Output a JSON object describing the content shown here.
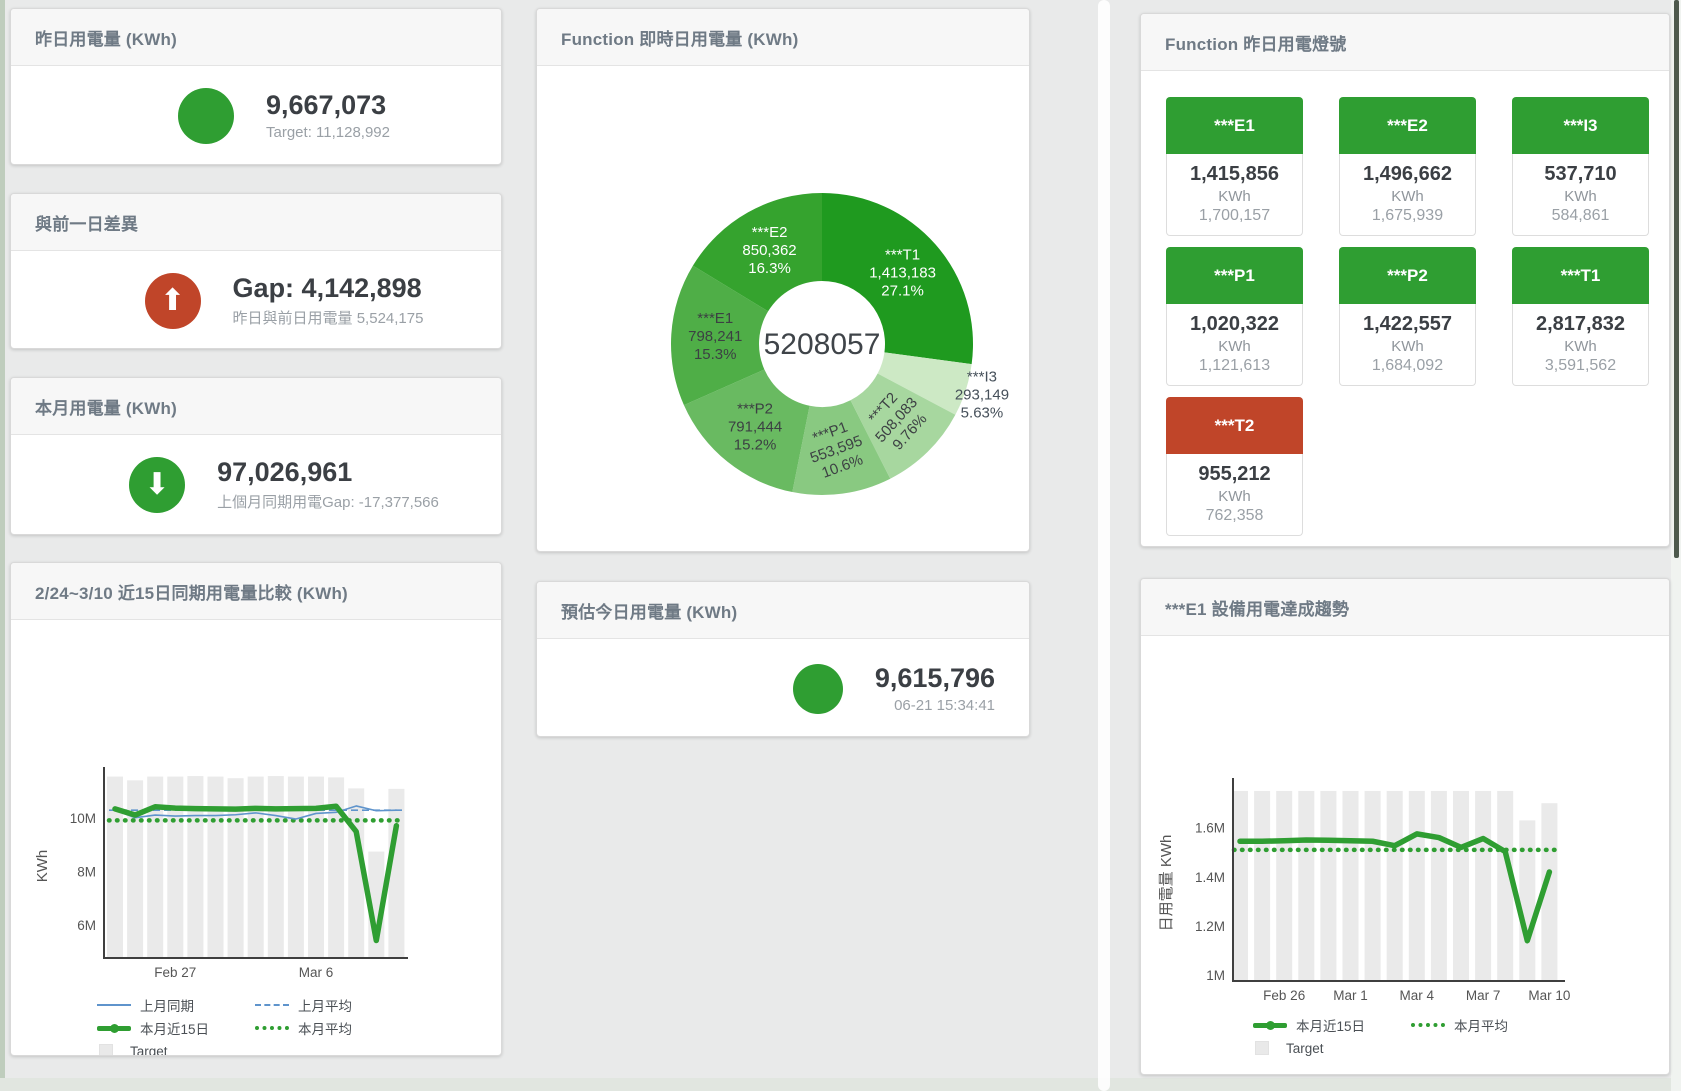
{
  "colors": {
    "green": "#2f9e32",
    "red": "#c04529",
    "blue": "#5f94cc",
    "target_bar": "#eaeaea",
    "axis": "#3f3f3f",
    "tick_text": "#555555"
  },
  "panels": {
    "yesterday": {
      "title": "昨日用電量 (KWh)",
      "value": "9,667,073",
      "sub": "Target: 11,128,992",
      "status_color": "#2f9e32"
    },
    "gap": {
      "title": "與前一日差異",
      "value": "Gap: 4,142,898",
      "sub": "昨日與前日用電量 5,524,175",
      "status_color": "#c04529",
      "arrow": "up"
    },
    "month": {
      "title": "本月用電量 (KWh)",
      "value": "97,026,961",
      "sub": "上個月同期用電Gap: -17,377,566",
      "status_color": "#2f9e32",
      "arrow": "down"
    },
    "estimate": {
      "title": "預估今日用電量 (KWh)",
      "value": "9,615,796",
      "sub": "06-21 15:34:41",
      "status_color": "#2f9e32"
    },
    "lights": {
      "title": "Function 昨日用電燈號",
      "cards": [
        {
          "label": "***E1",
          "value": "1,415,856",
          "unit": "KWh",
          "target": "1,700,157",
          "status": "green"
        },
        {
          "label": "***E2",
          "value": "1,496,662",
          "unit": "KWh",
          "target": "1,675,939",
          "status": "green"
        },
        {
          "label": "***I3",
          "value": "537,710",
          "unit": "KWh",
          "target": "584,861",
          "status": "green"
        },
        {
          "label": "***P1",
          "value": "1,020,322",
          "unit": "KWh",
          "target": "1,121,613",
          "status": "green"
        },
        {
          "label": "***P2",
          "value": "1,422,557",
          "unit": "KWh",
          "target": "1,684,092",
          "status": "green"
        },
        {
          "label": "***T1",
          "value": "2,817,832",
          "unit": "KWh",
          "target": "3,591,562",
          "status": "green"
        },
        {
          "label": "***T2",
          "value": "955,212",
          "unit": "KWh",
          "target": "762,358",
          "status": "red"
        }
      ]
    }
  },
  "chart_data": [
    {
      "id": "realtime_donut",
      "type": "pie",
      "title": "Function 即時日用電量 (KWh)",
      "center_total": "5208057",
      "slices": [
        {
          "label": "***T1",
          "value": 1413183,
          "value_str": "1,413,183",
          "pct": 27.1,
          "pct_str": "27.1%",
          "color": "#1f9a1f",
          "text": "#ffffff",
          "rot": 0,
          "outside": false
        },
        {
          "label": "***I3",
          "value": 293149,
          "value_str": "293,149",
          "pct": 5.63,
          "pct_str": "5.63%",
          "color": "#cde9c5",
          "text": "#46505a",
          "rot": 0,
          "outside": true
        },
        {
          "label": "***T2",
          "value": 508083,
          "value_str": "508,083",
          "pct": 9.76,
          "pct_str": "9.76%",
          "color": "#a7d79f",
          "text": "#3c4043",
          "rot": -48,
          "outside": false
        },
        {
          "label": "***P1",
          "value": 553595,
          "value_str": "553,595",
          "pct": 10.6,
          "pct_str": "10.6%",
          "color": "#89c981",
          "text": "#3c4043",
          "rot": -20,
          "outside": false
        },
        {
          "label": "***P2",
          "value": 791444,
          "value_str": "791,444",
          "pct": 15.2,
          "pct_str": "15.2%",
          "color": "#69ba61",
          "text": "#3c4043",
          "rot": 0,
          "outside": false
        },
        {
          "label": "***E1",
          "value": 798241,
          "value_str": "798,241",
          "pct": 15.3,
          "pct_str": "15.3%",
          "color": "#4fae47",
          "text": "#3c4043",
          "rot": 0,
          "outside": false
        },
        {
          "label": "***E2",
          "value": 850362,
          "value_str": "850,362",
          "pct": 16.3,
          "pct_str": "16.3%",
          "color": "#35a32e",
          "text": "#ffffff",
          "rot": 0,
          "outside": false
        }
      ]
    },
    {
      "id": "compare_15d",
      "type": "line",
      "title": "2/24~3/10 近15日同期用電量比較 (KWh)",
      "ylabel": "KWh",
      "values_unit": "millions of KWh",
      "n_points": 15,
      "ylim": [
        4.8,
        11.62
      ],
      "yticks": [
        {
          "v": 6,
          "label": "6M"
        },
        {
          "v": 8,
          "label": "8M"
        },
        {
          "v": 10,
          "label": "10M"
        }
      ],
      "xticks": [
        {
          "i": 3,
          "label": "Feb 27"
        },
        {
          "i": 10,
          "label": "Mar 6"
        }
      ],
      "target_bars": [
        11.56,
        11.42,
        11.56,
        11.56,
        11.58,
        11.56,
        11.5,
        11.56,
        11.58,
        11.56,
        11.56,
        11.53,
        11.12,
        8.75,
        11.1
      ],
      "series": [
        {
          "name": "上月同期",
          "kind": "line",
          "color": "#5f94cc",
          "width": 1.6,
          "values": [
            10.3,
            10.02,
            10.12,
            10.08,
            10.1,
            10.1,
            10.13,
            10.2,
            10.1,
            9.97,
            10.18,
            10.22,
            10.46,
            10.28,
            10.3
          ]
        },
        {
          "name": "上月平均",
          "kind": "dashed",
          "color": "#5f94cc",
          "width": 1.6,
          "value": 10.3
        },
        {
          "name": "本月近15日",
          "kind": "line",
          "color": "#2f9e32",
          "width": 5.5,
          "values": [
            10.35,
            10.12,
            10.43,
            10.38,
            10.36,
            10.35,
            10.34,
            10.37,
            10.35,
            10.36,
            10.37,
            10.45,
            9.5,
            5.42,
            9.72
          ]
        },
        {
          "name": "本月平均",
          "kind": "dotted",
          "color": "#2f9e32",
          "width": 4.5,
          "value": 9.92
        },
        {
          "name": "Target",
          "kind": "bar",
          "color": "#eaeaea"
        }
      ],
      "legend": [
        {
          "swatch": "blue-line",
          "label": "上月同期"
        },
        {
          "swatch": "blue-dash",
          "label": "上月平均"
        },
        {
          "swatch": "green-thick",
          "label": "本月近15日"
        },
        {
          "swatch": "green-dot",
          "label": "本月平均"
        },
        {
          "swatch": "target",
          "label": "Target"
        }
      ]
    },
    {
      "id": "e1_trend",
      "type": "line",
      "title": "***E1 設備用電達成趨勢",
      "ylabel": "日用電量 KWh",
      "values_unit": "millions of KWh",
      "n_points": 15,
      "ylim": [
        0.98,
        1.77
      ],
      "yticks": [
        {
          "v": 1.0,
          "label": "1M"
        },
        {
          "v": 1.2,
          "label": "1.2M"
        },
        {
          "v": 1.4,
          "label": "1.4M"
        },
        {
          "v": 1.6,
          "label": "1.6M"
        }
      ],
      "xticks": [
        {
          "i": 2,
          "label": "Feb 26"
        },
        {
          "i": 5,
          "label": "Mar 1"
        },
        {
          "i": 8,
          "label": "Mar 4"
        },
        {
          "i": 11,
          "label": "Mar 7"
        },
        {
          "i": 14,
          "label": "Mar 10"
        }
      ],
      "target_bars": [
        1.75,
        1.75,
        1.75,
        1.75,
        1.75,
        1.75,
        1.75,
        1.75,
        1.75,
        1.75,
        1.75,
        1.75,
        1.75,
        1.63,
        1.7
      ],
      "series": [
        {
          "name": "本月近15日",
          "kind": "line",
          "color": "#2f9e32",
          "width": 5.5,
          "values": [
            1.545,
            1.545,
            1.547,
            1.55,
            1.549,
            1.547,
            1.545,
            1.527,
            1.575,
            1.56,
            1.52,
            1.556,
            1.503,
            1.14,
            1.42
          ]
        },
        {
          "name": "本月平均",
          "kind": "dotted",
          "color": "#2f9e32",
          "width": 4.5,
          "value": 1.51
        },
        {
          "name": "Target",
          "kind": "bar",
          "color": "#eaeaea"
        }
      ],
      "legend": [
        {
          "swatch": "green-thick",
          "label": "本月近15日"
        },
        {
          "swatch": "green-dot",
          "label": "本月平均"
        },
        {
          "swatch": "target",
          "label": "Target"
        }
      ]
    }
  ]
}
